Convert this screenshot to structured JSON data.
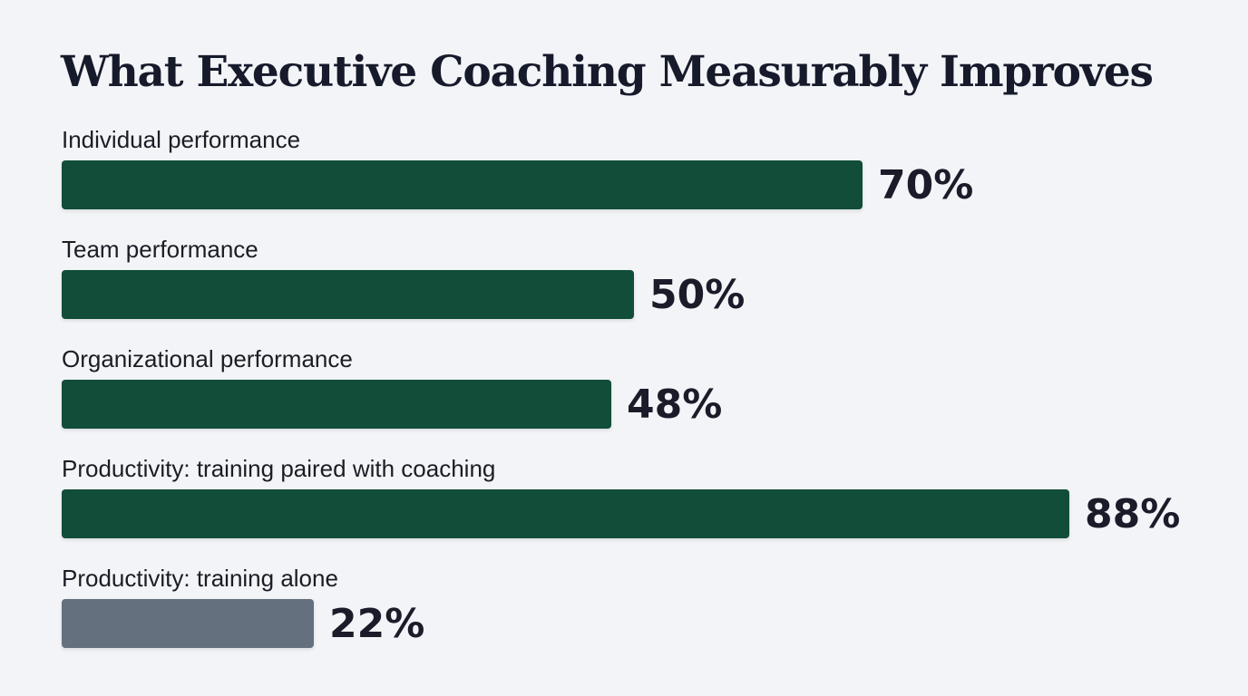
{
  "chart_data": {
    "type": "bar",
    "orientation": "horizontal",
    "title": "What Executive Coaching Measurably Improves",
    "xlim": [
      0,
      100
    ],
    "grid": false,
    "legend": "none",
    "categories": [
      "Individual performance",
      "Team performance",
      "Organizational performance",
      "Productivity: training paired with coaching",
      "Productivity: training alone"
    ],
    "values": [
      70,
      50,
      48,
      88,
      22
    ],
    "value_labels": [
      "70%",
      "50%",
      "48%",
      "88%",
      "22%"
    ],
    "bar_colors": [
      "#114d38",
      "#114d38",
      "#114d38",
      "#114d38",
      "#65707f"
    ]
  }
}
